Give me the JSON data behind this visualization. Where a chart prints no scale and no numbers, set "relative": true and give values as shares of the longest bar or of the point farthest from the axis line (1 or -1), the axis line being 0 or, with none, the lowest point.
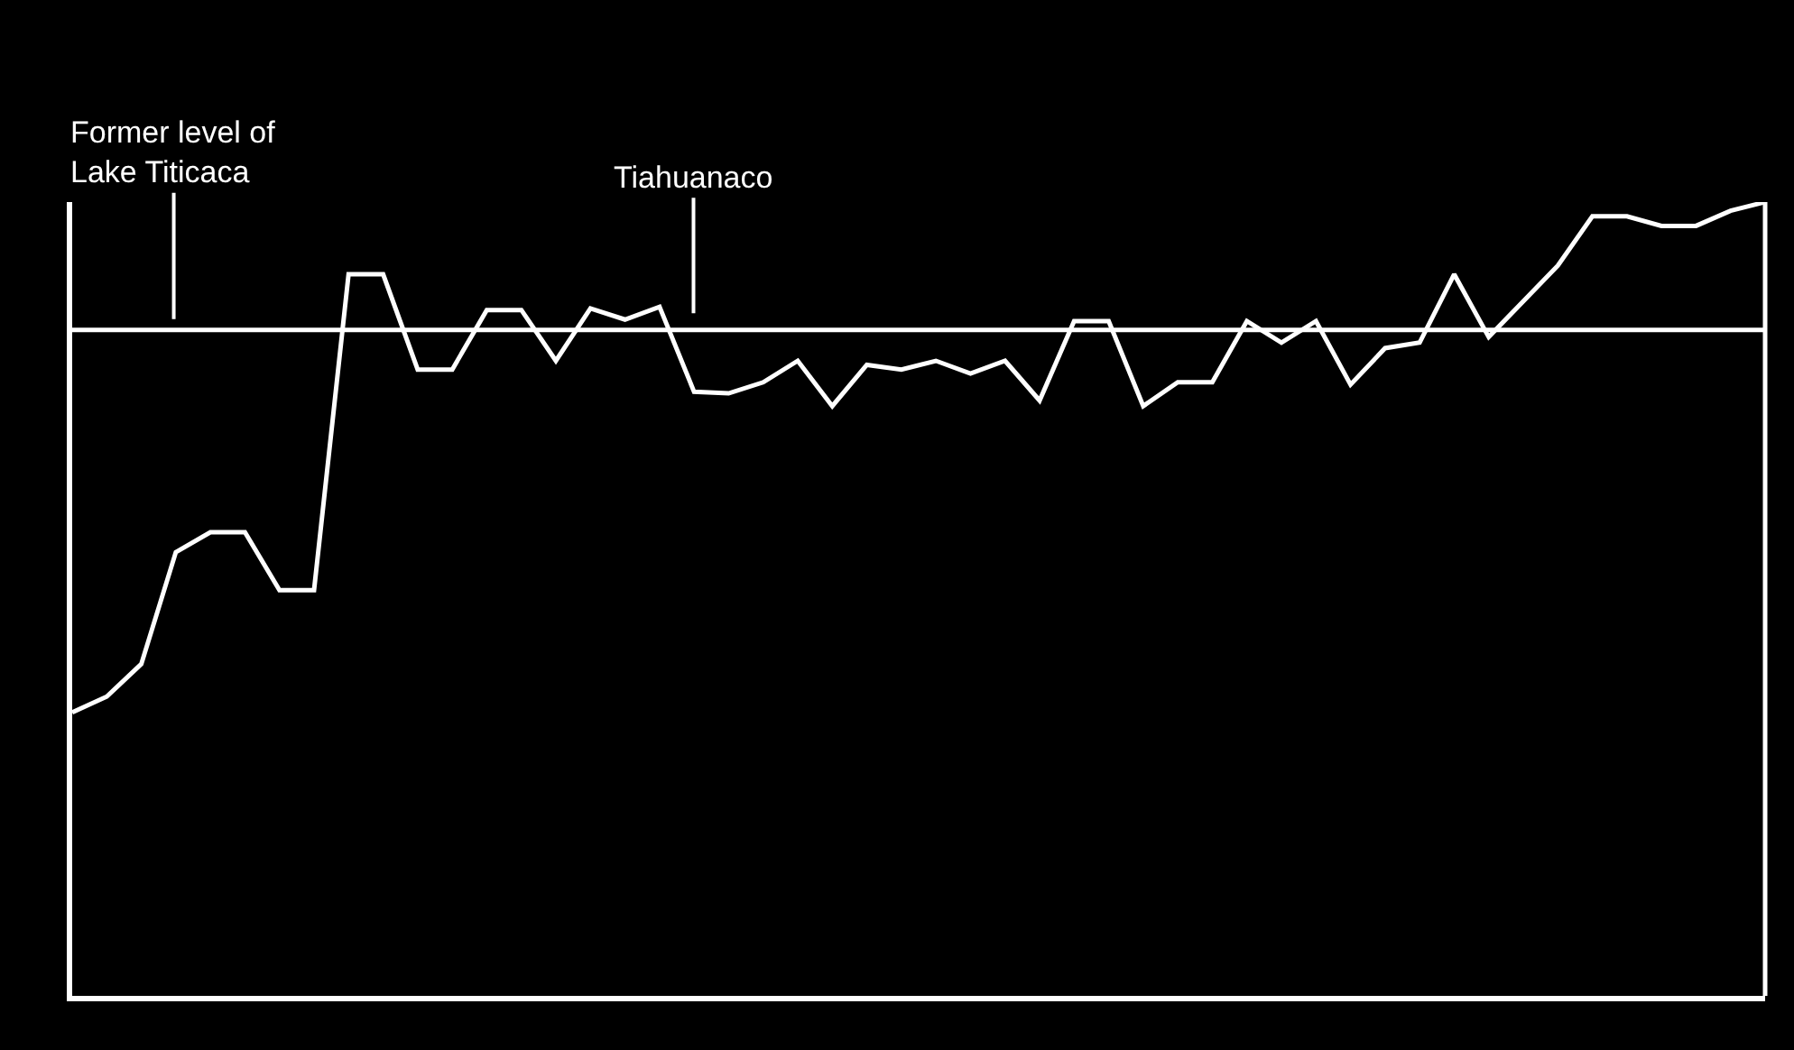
{
  "chart_data": {
    "type": "line",
    "relative": true,
    "grid": false,
    "marker": "none",
    "line_style": "solid",
    "tick_labels": false,
    "categories": [
      null,
      null,
      null,
      null,
      null,
      null,
      null,
      null,
      null,
      null,
      null,
      null,
      null,
      null,
      null,
      null,
      null,
      null,
      null,
      null,
      null,
      null,
      null,
      null,
      null,
      null,
      null,
      null,
      null,
      null,
      null,
      null,
      null,
      null,
      null,
      null,
      null,
      null,
      null,
      null,
      null,
      null,
      null,
      null,
      null,
      null,
      null,
      null,
      null,
      null
    ],
    "series": [
      {
        "color": "#ffffff",
        "values": [
          0.357,
          0.377,
          0.418,
          0.559,
          0.584,
          0.584,
          0.511,
          0.511,
          0.909,
          0.909,
          0.789,
          0.789,
          0.864,
          0.864,
          0.8,
          0.866,
          0.852,
          0.868,
          0.761,
          0.759,
          0.773,
          0.8,
          0.743,
          0.795,
          0.789,
          0.8,
          0.784,
          0.8,
          0.75,
          0.85,
          0.85,
          0.743,
          0.773,
          0.773,
          0.85,
          0.823,
          0.85,
          0.77,
          0.816,
          0.823,
          0.909,
          0.83,
          0.875,
          0.92,
          0.982,
          0.982,
          0.97,
          0.97,
          0.989,
          1.0
        ]
      }
    ],
    "ref_lines": [
      {
        "axis": "y",
        "value": 0.839,
        "label": "Former level of\nLake Titicaca",
        "color": "#ffffff",
        "line_style": "solid"
      }
    ],
    "annotations": [
      "Tiahuanaco"
    ]
  }
}
